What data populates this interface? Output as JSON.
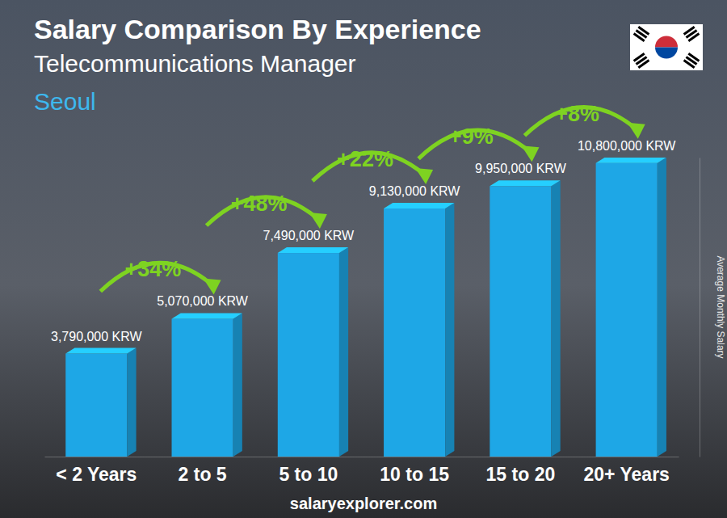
{
  "chart_data": {
    "type": "bar",
    "title": "Salary Comparison By Experience",
    "subtitle": "Telecommunications Manager",
    "region": "Seoul",
    "ylabel": "Average Monthly Salary",
    "source": "salaryexplorer.com",
    "categories": [
      "< 2 Years",
      "2 to 5",
      "5 to 10",
      "10 to 15",
      "15 to 20",
      "20+ Years"
    ],
    "values": [
      3790000,
      5070000,
      7490000,
      9130000,
      9950000,
      10800000
    ],
    "value_labels": [
      "3,790,000 KRW",
      "5,070,000 KRW",
      "7,490,000 KRW",
      "9,130,000 KRW",
      "9,950,000 KRW",
      "10,800,000 KRW"
    ],
    "annotations": [
      "+34%",
      "+48%",
      "+22%",
      "+9%",
      "+8%"
    ],
    "color": "#1ea7e6",
    "ylim": [
      0,
      11000000
    ],
    "data_labels": true,
    "tick_labels": "x"
  }
}
